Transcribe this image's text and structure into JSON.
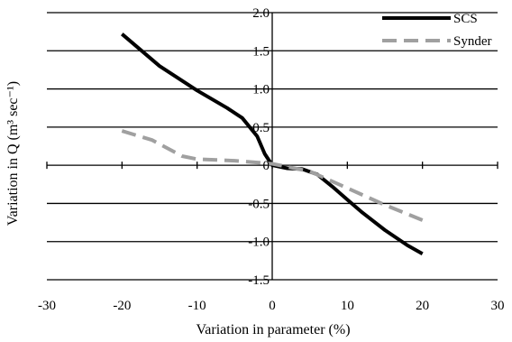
{
  "chart_data": {
    "type": "line",
    "xlabel": "Variation in parameter (%)",
    "ylabel": "Variation in Q (m³ sec⁻¹)",
    "xlim": [
      -30,
      30
    ],
    "ylim": [
      -1.5,
      2.0
    ],
    "x_ticks": [
      "-30",
      "-20",
      "-10",
      "0",
      "10",
      "20",
      "30"
    ],
    "y_ticks": [
      "2.0",
      "1.5",
      "1.0",
      "0.5",
      "0",
      "-0.5",
      "-1.0",
      "-1.5"
    ],
    "grid": "horizontal",
    "legend_position": "top-right",
    "series": [
      {
        "name": "SCS",
        "color": "#000000",
        "style": "solid",
        "points": [
          [
            -20,
            1.72
          ],
          [
            -15,
            1.3
          ],
          [
            -10,
            0.98
          ],
          [
            -6,
            0.75
          ],
          [
            -4,
            0.62
          ],
          [
            -2,
            0.38
          ],
          [
            -1,
            0.15
          ],
          [
            0,
            0.0
          ],
          [
            1,
            -0.02
          ],
          [
            2,
            -0.04
          ],
          [
            4,
            -0.05
          ],
          [
            6,
            -0.12
          ],
          [
            8,
            -0.28
          ],
          [
            10,
            -0.45
          ],
          [
            12,
            -0.62
          ],
          [
            15,
            -0.85
          ],
          [
            18,
            -1.05
          ],
          [
            20,
            -1.16
          ]
        ]
      },
      {
        "name": "Synder",
        "color": "#a0a0a0",
        "style": "dashed",
        "points": [
          [
            -20,
            0.45
          ],
          [
            -16,
            0.33
          ],
          [
            -12,
            0.12
          ],
          [
            -10,
            0.08
          ],
          [
            -5,
            0.06
          ],
          [
            0,
            0.02
          ],
          [
            5,
            -0.08
          ],
          [
            10,
            -0.3
          ],
          [
            15,
            -0.52
          ],
          [
            20,
            -0.72
          ]
        ]
      }
    ]
  }
}
